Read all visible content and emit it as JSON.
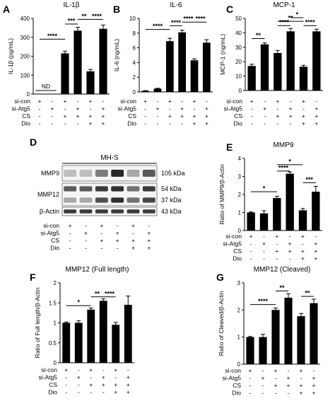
{
  "colors": {
    "bar": "#000000",
    "axis": "#000000",
    "blot_bg": "#f4f4f4",
    "band": "#1a1a1a"
  },
  "treatment_row_labels": [
    "si-con",
    "si-Atg5",
    "CS",
    "Dio"
  ],
  "treatment_matrix": [
    [
      "+",
      "-",
      "+",
      "-",
      "+",
      "-"
    ],
    [
      "-",
      "+",
      "-",
      "+",
      "-",
      "+"
    ],
    [
      "-",
      "-",
      "+",
      "+",
      "+",
      "+"
    ],
    [
      "-",
      "-",
      "-",
      "-",
      "+",
      "+"
    ]
  ],
  "chart_data": [
    {
      "panel": "A",
      "title": "IL-1β",
      "ylabel": "IL-1β (pg/mL)",
      "type": "bar",
      "ylim": [
        0,
        400
      ],
      "yticks": [
        0,
        100,
        200,
        300,
        400
      ],
      "values": [
        0,
        0,
        215,
        335,
        120,
        345
      ],
      "errors": [
        0,
        0,
        12,
        18,
        10,
        20
      ],
      "annotations": [
        {
          "text": "ND",
          "bars": [
            0,
            1
          ]
        }
      ],
      "sig": [
        {
          "from": 0,
          "to": 2,
          "label": "****",
          "y": 290
        },
        {
          "from": 2,
          "to": 3,
          "label": "***",
          "y": 370
        },
        {
          "from": 3,
          "to": 4,
          "label": "**",
          "y": 395
        },
        {
          "from": 4,
          "to": 5,
          "label": "****",
          "y": 395
        }
      ]
    },
    {
      "panel": "B",
      "title": "IL-6",
      "ylabel": "IL-6 (ng/mL)",
      "type": "bar",
      "ylim": [
        0,
        10
      ],
      "yticks": [
        0,
        2,
        4,
        6,
        8,
        10
      ],
      "values": [
        0.15,
        0.45,
        6.9,
        8.1,
        4.3,
        6.7
      ],
      "errors": [
        0.03,
        0.05,
        0.4,
        0.3,
        0.2,
        0.4
      ],
      "sig": [
        {
          "from": 0,
          "to": 2,
          "label": "****",
          "y": 8.5
        },
        {
          "from": 2,
          "to": 3,
          "label": "****",
          "y": 9.0
        },
        {
          "from": 3,
          "to": 4,
          "label": "****",
          "y": 9.5
        },
        {
          "from": 4,
          "to": 5,
          "label": "****",
          "y": 9.5
        }
      ]
    },
    {
      "panel": "C",
      "title": "MCP-1",
      "ylabel": "MCP-1 (ng/mL)",
      "type": "bar",
      "ylim": [
        0,
        50
      ],
      "yticks": [
        0,
        10,
        20,
        30,
        40,
        50
      ],
      "values": [
        17,
        32,
        26,
        41,
        16.5,
        41
      ],
      "errors": [
        1.2,
        1,
        1.8,
        2,
        1,
        1.5
      ],
      "sig": [
        {
          "from": 0,
          "to": 1,
          "label": "**",
          "y": 36
        },
        {
          "from": 2,
          "to": 3,
          "label": "****",
          "y": 45
        },
        {
          "from": 2,
          "to": 4,
          "label": "**",
          "y": 48
        },
        {
          "from": 3,
          "to": 4,
          "label": "*",
          "y": 50.5
        },
        {
          "from": 4,
          "to": 5,
          "label": "****",
          "y": 45
        }
      ]
    },
    {
      "panel": "E",
      "title": "MMP9",
      "ylabel": "Ratio of MMP9/β-Actin",
      "type": "bar",
      "ylim": [
        0,
        4
      ],
      "yticks": [
        0,
        1,
        2,
        3,
        4
      ],
      "values": [
        1.0,
        0.95,
        1.8,
        3.15,
        1.12,
        2.15
      ],
      "errors": [
        0.03,
        0.15,
        0.1,
        0.1,
        0.1,
        0.3
      ],
      "sig": [
        {
          "from": 0,
          "to": 2,
          "label": "*",
          "y": 2.15
        },
        {
          "from": 2,
          "to": 3,
          "label": "****",
          "y": 3.3
        },
        {
          "from": 2,
          "to": 4,
          "label": "*",
          "y": 3.65
        },
        {
          "from": 4,
          "to": 5,
          "label": "***",
          "y": 2.65
        }
      ]
    },
    {
      "panel": "F",
      "title": "MMP12 (Full length)",
      "ylabel": "Ratio of Full length/β-Actin",
      "type": "bar",
      "ylim": [
        0,
        2.0
      ],
      "yticks": [
        0.0,
        0.5,
        1.0,
        1.5,
        2.0
      ],
      "values": [
        1.0,
        1.0,
        1.33,
        1.55,
        0.95,
        1.45
      ],
      "errors": [
        0.02,
        0.05,
        0.04,
        0.05,
        0.06,
        0.22
      ],
      "sig": [
        {
          "from": 0,
          "to": 2,
          "label": "*",
          "y": 1.43
        },
        {
          "from": 2,
          "to": 3,
          "label": "**",
          "y": 1.65
        },
        {
          "from": 3,
          "to": 4,
          "label": "****",
          "y": 1.65
        }
      ]
    },
    {
      "panel": "G",
      "title": "MMP12 (Cleaved)",
      "ylabel": "Ratio of Cleaved/β-Actin",
      "type": "bar",
      "ylim": [
        0,
        3
      ],
      "yticks": [
        0,
        1,
        2,
        3
      ],
      "values": [
        1.0,
        1.0,
        2.0,
        2.45,
        1.77,
        2.25
      ],
      "errors": [
        0.02,
        0.1,
        0.07,
        0.15,
        0.1,
        0.15
      ],
      "sig": [
        {
          "from": 0,
          "to": 2,
          "label": "****",
          "y": 2.2
        },
        {
          "from": 2,
          "to": 3,
          "label": "**",
          "y": 2.7
        },
        {
          "from": 4,
          "to": 5,
          "label": "**",
          "y": 2.5
        }
      ]
    }
  ],
  "blot": {
    "panel": "D",
    "title": "MH-S",
    "rows": [
      {
        "label": "MMP9",
        "sizes": [
          "105 kDa"
        ],
        "intensity": [
          [
            0.25,
            0.25,
            0.55,
            0.95,
            0.35,
            0.7
          ]
        ]
      },
      {
        "label": "MMP12",
        "sizes": [
          "54 kDa",
          "37 kDa"
        ],
        "intensity": [
          [
            0.7,
            0.7,
            0.85,
            0.9,
            0.6,
            0.85
          ],
          [
            0.35,
            0.35,
            0.75,
            0.9,
            0.6,
            0.8
          ]
        ]
      },
      {
        "label": "β-Actin",
        "sizes": [
          "43 kDa"
        ],
        "intensity": [
          [
            0.85,
            0.85,
            0.85,
            0.85,
            0.85,
            0.85
          ]
        ]
      }
    ]
  }
}
